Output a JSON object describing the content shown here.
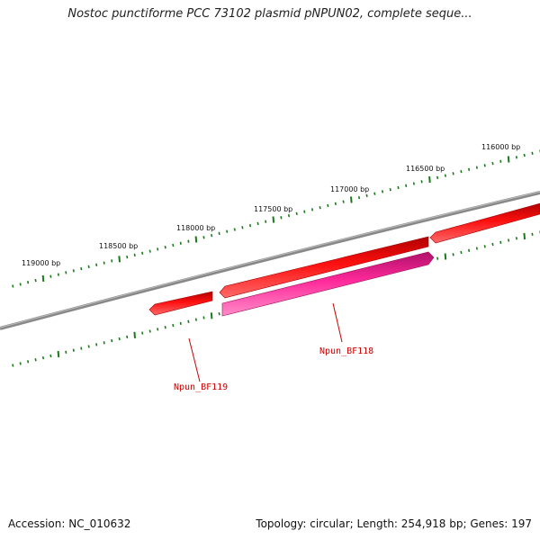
{
  "title": "Nostoc punctiforme PCC 73102 plasmid pNPUN02, complete seque...",
  "footer": {
    "accession": "Accession: NC_010632",
    "summary": "Topology: circular; Length: 254,918 bp; Genes: 197"
  },
  "colors": {
    "backbone": "#7a7a7a",
    "tick": "#1a7a1a",
    "gene_forward": "#e00000",
    "gene_reverse": "#e0208a",
    "label": "#cc0000"
  },
  "scale": {
    "labels": [
      "119000 bp",
      "118500 bp",
      "118000 bp",
      "117500 bp",
      "117000 bp",
      "116500 bp",
      "116000 bp"
    ]
  },
  "genes": [
    {
      "name": "Npun_BF119",
      "strand": "forward",
      "labelled": true
    },
    {
      "name": "Npun_BF118",
      "strand": "reverse",
      "labelled": true
    },
    {
      "name": "",
      "strand": "forward",
      "labelled": false
    },
    {
      "name": "",
      "strand": "forward",
      "labelled": false
    }
  ]
}
